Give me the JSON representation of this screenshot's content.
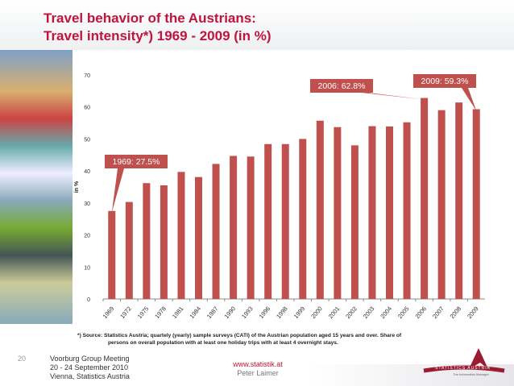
{
  "header": {
    "title_line1": "Travel behavior of the Austrians:",
    "title_line2": "Travel intensity*) 1969 - 2009 (in %)"
  },
  "chart_data": {
    "type": "bar",
    "ylabel": "in %",
    "ylim": [
      0,
      70
    ],
    "yticks": [
      0,
      10,
      20,
      30,
      40,
      50,
      60,
      70
    ],
    "grid": false,
    "categories": [
      "1969",
      "1972",
      "1975",
      "1978",
      "1981",
      "1984",
      "1987",
      "1990",
      "1993",
      "1996",
      "1998",
      "1999",
      "2000",
      "2001",
      "2002",
      "2003",
      "2004",
      "2005",
      "2006",
      "2007",
      "2008",
      "2009"
    ],
    "values": [
      27.5,
      30.3,
      36.2,
      35.5,
      39.7,
      38.1,
      42.2,
      44.7,
      44.5,
      48.4,
      48.4,
      50.0,
      55.7,
      53.7,
      48.0,
      54.0,
      53.9,
      55.2,
      62.8,
      59.0,
      61.4,
      59.3
    ],
    "bar_color": "#c0504d",
    "annotations": [
      {
        "text": "1969: 27.5%",
        "category": "1969"
      },
      {
        "text": "2006: 62.8%",
        "category": "2006"
      },
      {
        "text": "2009: 59.3%",
        "category": "2009"
      }
    ]
  },
  "footnote": {
    "line1": "*) Source: Statistics Austria; quartely (yearly) sample surveys (CATI) of the Austrian population aged 15 years and over. Share of",
    "line2": "persons on overall population with at least one holiday trips with at least 4 overnight stays."
  },
  "footer": {
    "page": "20",
    "meeting1": "Voorburg Group Meeting",
    "meeting2": "20 - 24 September 2010",
    "meeting3": "Vienna, Statistics Austria",
    "url": "www.statistik.at",
    "author": "Peter Laimer",
    "logo_text": "STATISTICS AUSTRIA",
    "logo_tagline": "The Information Manager"
  }
}
